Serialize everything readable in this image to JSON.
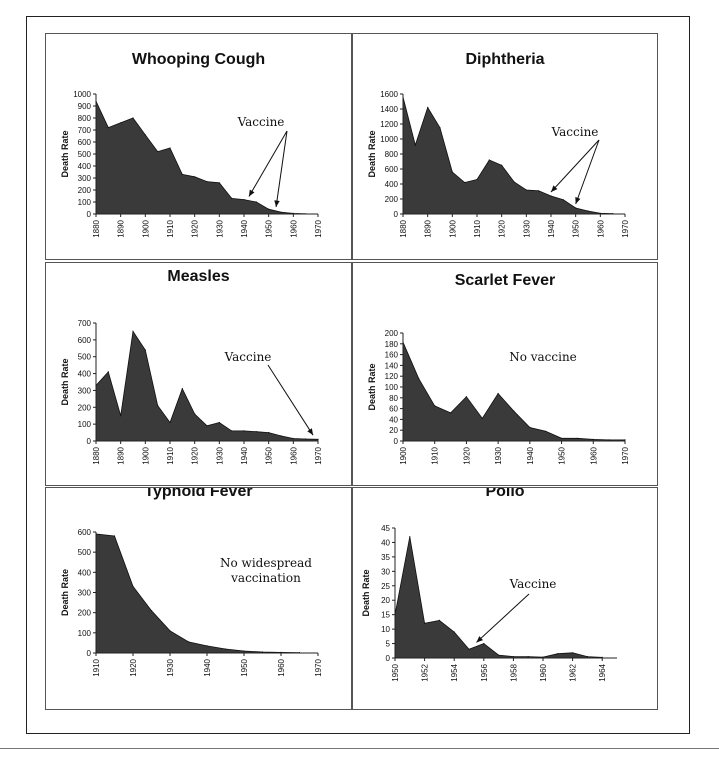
{
  "chart_data": [
    {
      "type": "area",
      "title": "Whooping Cough",
      "ylabel": "Death Rate",
      "ylim": [
        0,
        1000
      ],
      "yticks": [
        0,
        100,
        200,
        300,
        400,
        500,
        600,
        700,
        800,
        900,
        1000
      ],
      "xlim": [
        1880,
        1970
      ],
      "xticks": [
        1880,
        1890,
        1900,
        1910,
        1920,
        1930,
        1940,
        1950,
        1960,
        1970
      ],
      "x": [
        1880,
        1885,
        1890,
        1895,
        1900,
        1905,
        1910,
        1915,
        1920,
        1925,
        1930,
        1935,
        1940,
        1945,
        1950,
        1955,
        1960,
        1965
      ],
      "values": [
        940,
        720,
        760,
        800,
        660,
        520,
        550,
        330,
        310,
        270,
        260,
        130,
        120,
        100,
        40,
        15,
        5,
        2
      ],
      "annotations": [
        {
          "text": "Vaccine",
          "arrows_to_x": [
            1942,
            1953
          ]
        }
      ]
    },
    {
      "type": "area",
      "title": "Diphtheria",
      "ylabel": "Death Rate",
      "ylim": [
        0,
        1600
      ],
      "yticks": [
        0,
        200,
        400,
        600,
        800,
        1000,
        1200,
        1400,
        1600
      ],
      "xlim": [
        1880,
        1970
      ],
      "xticks": [
        1880,
        1890,
        1900,
        1910,
        1920,
        1930,
        1940,
        1950,
        1960,
        1970
      ],
      "x": [
        1880,
        1885,
        1890,
        1895,
        1900,
        1905,
        1910,
        1915,
        1920,
        1925,
        1930,
        1935,
        1940,
        1945,
        1950,
        1955,
        1960,
        1965
      ],
      "values": [
        1560,
        920,
        1420,
        1150,
        560,
        420,
        460,
        720,
        650,
        430,
        320,
        310,
        240,
        190,
        80,
        40,
        10,
        5
      ],
      "annotations": [
        {
          "text": "Vaccine",
          "arrows_to_x": [
            1940,
            1950
          ]
        }
      ]
    },
    {
      "type": "area",
      "title": "Measles",
      "ylabel": "Death Rate",
      "ylim": [
        0,
        700
      ],
      "yticks": [
        0,
        100,
        200,
        300,
        400,
        500,
        600,
        700
      ],
      "xlim": [
        1880,
        1970
      ],
      "xticks": [
        1880,
        1890,
        1900,
        1910,
        1920,
        1930,
        1940,
        1950,
        1960,
        1970
      ],
      "x": [
        1880,
        1885,
        1890,
        1895,
        1900,
        1905,
        1910,
        1915,
        1920,
        1925,
        1930,
        1935,
        1940,
        1945,
        1950,
        1955,
        1960,
        1965,
        1970
      ],
      "values": [
        330,
        410,
        150,
        650,
        540,
        210,
        110,
        310,
        160,
        90,
        110,
        60,
        60,
        55,
        50,
        30,
        15,
        12,
        10
      ],
      "annotations": [
        {
          "text": "Vaccine",
          "arrows_to_x": [
            1968
          ]
        }
      ]
    },
    {
      "type": "area",
      "title": "Scarlet Fever",
      "ylabel": "Death Rate",
      "ylim": [
        0,
        200
      ],
      "yticks": [
        0,
        20,
        40,
        60,
        80,
        100,
        120,
        140,
        160,
        180,
        200
      ],
      "xlim": [
        1900,
        1970
      ],
      "xticks": [
        1900,
        1910,
        1920,
        1930,
        1940,
        1950,
        1960,
        1970
      ],
      "x": [
        1900,
        1905,
        1910,
        1915,
        1920,
        1925,
        1930,
        1935,
        1940,
        1945,
        1950,
        1955,
        1960,
        1965,
        1970
      ],
      "values": [
        183,
        115,
        65,
        52,
        82,
        42,
        88,
        55,
        25,
        18,
        5,
        5,
        3,
        2,
        2
      ],
      "annotations": [
        {
          "text": "No vaccine",
          "arrows_to_x": []
        }
      ]
    },
    {
      "type": "area",
      "title": "Typhoid Fever",
      "ylabel": "Death Rate",
      "ylim": [
        0,
        600
      ],
      "yticks": [
        0,
        100,
        200,
        300,
        400,
        500,
        600
      ],
      "xlim": [
        1910,
        1970
      ],
      "xticks": [
        1910,
        1920,
        1930,
        1940,
        1950,
        1960,
        1970
      ],
      "x": [
        1910,
        1915,
        1920,
        1925,
        1930,
        1935,
        1940,
        1945,
        1950,
        1955,
        1960,
        1965
      ],
      "values": [
        590,
        580,
        330,
        210,
        110,
        55,
        35,
        20,
        10,
        5,
        3,
        2
      ],
      "annotations": [
        {
          "text": "No widespread",
          "arrows_to_x": []
        },
        {
          "text": "vaccination",
          "arrows_to_x": []
        }
      ]
    },
    {
      "type": "area",
      "title": "Polio",
      "ylabel": "Death Rate",
      "ylim": [
        0,
        45
      ],
      "yticks": [
        0,
        5,
        10,
        15,
        20,
        25,
        30,
        35,
        40,
        45
      ],
      "xlim": [
        1950,
        1965
      ],
      "xticks": [
        1950,
        1952,
        1954,
        1956,
        1958,
        1960,
        1962,
        1964
      ],
      "x": [
        1950,
        1951,
        1952,
        1953,
        1954,
        1955,
        1956,
        1957,
        1958,
        1959,
        1960,
        1961,
        1962,
        1963,
        1964
      ],
      "values": [
        15,
        42,
        12,
        13,
        9,
        3,
        5,
        1,
        0.5,
        0.5,
        0.3,
        1.5,
        1.8,
        0.5,
        0.2
      ],
      "annotations": [
        {
          "text": "Vaccine",
          "arrows_to_x": [
            1955.5
          ]
        }
      ]
    }
  ]
}
